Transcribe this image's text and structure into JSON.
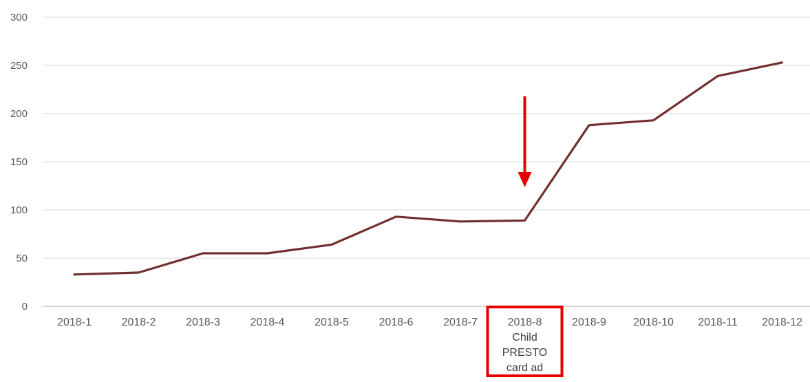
{
  "chart_data": {
    "type": "line",
    "title": "",
    "xlabel": "",
    "ylabel": "",
    "categories": [
      "2018-1",
      "2018-2",
      "2018-3",
      "2018-4",
      "2018-5",
      "2018-6",
      "2018-7",
      "2018-8",
      "2018-9",
      "2018-10",
      "2018-11",
      "2018-12"
    ],
    "series": [
      {
        "values": [
          33,
          35,
          55,
          55,
          64,
          93,
          88,
          89,
          188,
          193,
          239,
          253
        ]
      }
    ],
    "ylim": [
      0,
      300
    ],
    "yticks": [
      0,
      50,
      100,
      150,
      200,
      250,
      300
    ],
    "grid": true,
    "legend": "none",
    "annotation": {
      "category": "2018-8",
      "text_lines": [
        "Child",
        "PRESTO",
        "card ad"
      ],
      "box_color": "#e60000",
      "arrow_color": "#e60000"
    },
    "line_color": "#722f30"
  }
}
